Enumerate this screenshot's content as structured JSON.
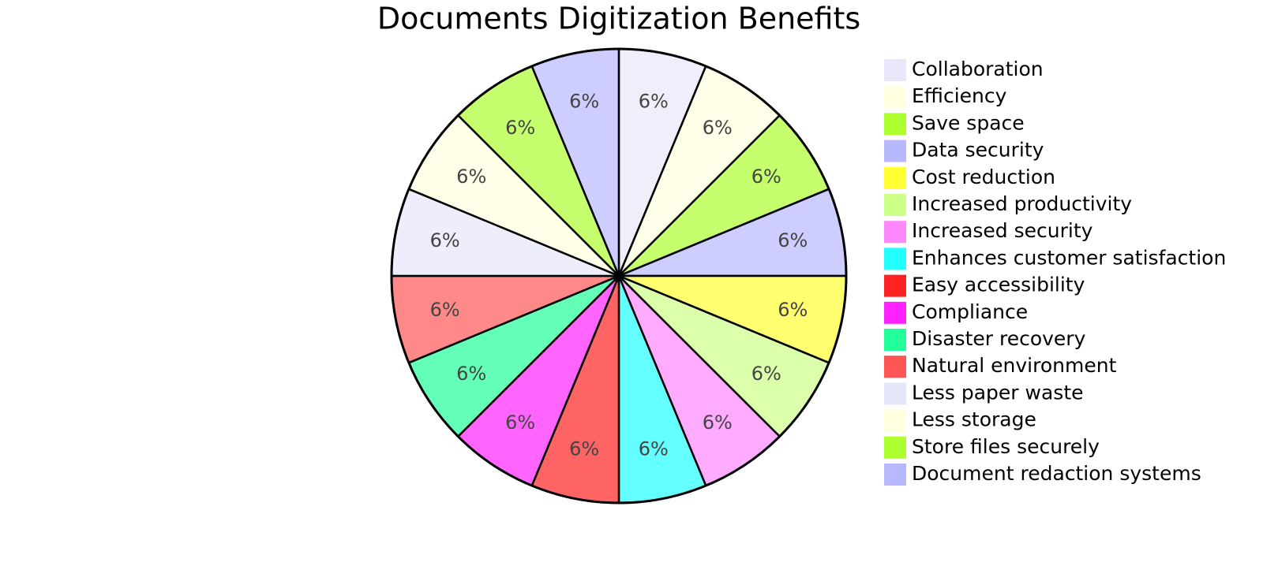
{
  "chart_data": {
    "type": "pie",
    "title": "Documents Digitization Benefits",
    "categories": [
      "Collaboration",
      "Efficiency",
      "Save space",
      "Data security",
      "Cost reduction",
      "Increased productivity",
      "Increased security",
      "Enhances customer satisfaction",
      "Easy accessibility",
      "Compliance",
      "Disaster recovery",
      "Natural environment",
      "Less paper waste",
      "Less storage",
      "Store files securely",
      "Document redaction systems"
    ],
    "values": [
      6.25,
      6.25,
      6.25,
      6.25,
      6.25,
      6.25,
      6.25,
      6.25,
      6.25,
      6.25,
      6.25,
      6.25,
      6.25,
      6.25,
      6.25,
      6.25
    ],
    "value_labels": [
      "6%",
      "6%",
      "6%",
      "6%",
      "6%",
      "6%",
      "6%",
      "6%",
      "6%",
      "6%",
      "6%",
      "6%",
      "6%",
      "6%",
      "6%",
      "6%"
    ],
    "colors": [
      "#e8e8fa",
      "#ffffe0",
      "#adff2f",
      "#b8b8ff",
      "#ffff33",
      "#ccff88",
      "#ff88ff",
      "#22ffff",
      "#ff2222",
      "#ff22ff",
      "#22ff99",
      "#ff5555",
      "#e6e6fa",
      "#ffffe0",
      "#adff2f",
      "#b8b8ff"
    ],
    "opacity": 0.7,
    "legend": "right"
  }
}
